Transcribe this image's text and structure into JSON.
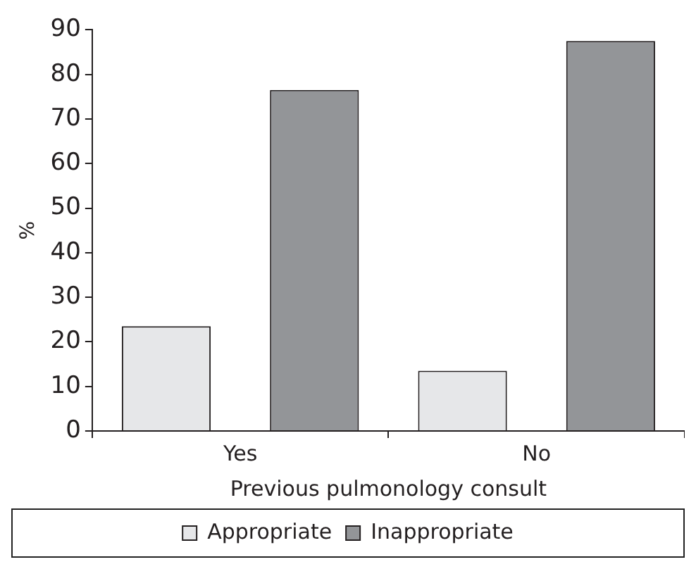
{
  "chart_data": {
    "type": "bar",
    "xlabel": "Previous pulmonology consult",
    "ylabel": "%",
    "categories": [
      "Yes",
      "No"
    ],
    "series": [
      {
        "name": "Appropriate",
        "color": "#e6e7e9",
        "values": [
          23.5,
          13.5
        ]
      },
      {
        "name": "Inappropriate",
        "color": "#939598",
        "values": [
          76.5,
          87.5
        ]
      }
    ],
    "ylim": [
      0,
      90
    ],
    "yticks": [
      0,
      10,
      20,
      30,
      40,
      50,
      60,
      70,
      80,
      90
    ],
    "grid": false,
    "legend": "bottom"
  }
}
